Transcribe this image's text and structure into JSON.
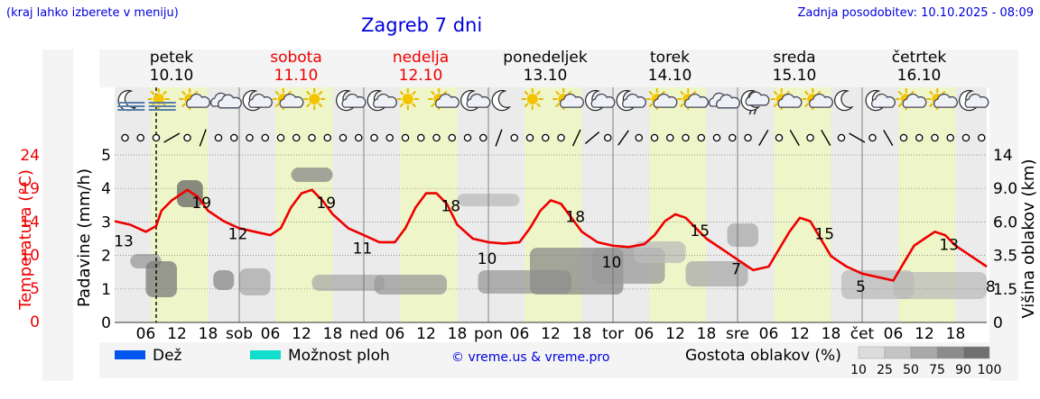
{
  "header": {
    "menu_hint": "(kraj lahko izberete v meniju)",
    "title": "Zagreb 7 dni",
    "last_update": "Zadnja posodobitev: 10.10.2025 - 08:09"
  },
  "days": [
    {
      "name": "petek",
      "date": "10.10",
      "weekend": false
    },
    {
      "name": "sobota",
      "date": "11.10",
      "weekend": true
    },
    {
      "name": "nedelja",
      "date": "12.10",
      "weekend": true
    },
    {
      "name": "ponedeljek",
      "date": "13.10",
      "weekend": false
    },
    {
      "name": "torek",
      "date": "14.10",
      "weekend": false
    },
    {
      "name": "sreda",
      "date": "15.10",
      "weekend": false
    },
    {
      "name": "četrtek",
      "date": "16.10",
      "weekend": false
    }
  ],
  "x_axis": {
    "tick_labels": [
      "06",
      "12",
      "18",
      "sob",
      "06",
      "12",
      "18",
      "ned",
      "06",
      "12",
      "18",
      "pon",
      "06",
      "12",
      "18",
      "tor",
      "06",
      "12",
      "18",
      "sre",
      "06",
      "12",
      "18",
      "čet",
      "06",
      "12",
      "18"
    ]
  },
  "y_axes": {
    "temperature_label": "Temperatura (°C)",
    "temperature_ticks": [
      "24",
      "19",
      "14",
      "10",
      "5",
      "0"
    ],
    "precip_label": "Padavine (mm/h)",
    "precip_ticks": [
      "5",
      "4",
      "3",
      "2",
      "1",
      "0"
    ],
    "cloud_label": "Višina oblakov (km)",
    "cloud_ticks": [
      "14",
      "9.0",
      "6.0",
      "3.5",
      "1.5",
      "0"
    ]
  },
  "legend": {
    "rain": "Dež",
    "showers": "Možnost ploh",
    "copyright": "© vreme.us & vreme.pro",
    "cloud_density": "Gostota oblakov (%)",
    "density_ticks": [
      "10",
      "25",
      "50",
      "75",
      "90",
      "100"
    ]
  },
  "colors": {
    "temperature_line": "#ee0000",
    "title": "#0000dd",
    "weekend": "#ee0000",
    "rain": "#0055ee",
    "showers": "#11ddcc",
    "daylight": "#eef5c8",
    "night": "#ebebeb"
  },
  "weather_icons": [
    "moon-fog-icon",
    "sun-fog-icon",
    "sun-cloud-icon",
    "cloud-icon",
    "moon-cloud-icon",
    "sun-cloud-icon",
    "sun-icon",
    "moon-cloud-icon",
    "moon-cloud-icon",
    "sun-icon",
    "sun-cloud-icon",
    "moon-cloud-icon",
    "moon-icon",
    "sun-icon",
    "sun-cloud-icon",
    "moon-cloud-icon",
    "moon-cloud-icon",
    "sun-cloud-icon",
    "sun-cloud-icon",
    "cloud-icon",
    "moon-rain-icon",
    "sun-cloud-icon",
    "sun-cloud-icon",
    "moon-icon",
    "moon-cloud-icon",
    "sun-cloud-icon",
    "sun-cloud-icon",
    "moon-cloud-icon"
  ],
  "chart_data": {
    "type": "line",
    "title": "Zagreb 7 dni",
    "xlabel": "",
    "ylabel": "Temperatura (°C)",
    "ylim": [
      0,
      24
    ],
    "time_range": [
      "10.10 00:00",
      "17.10 00:00"
    ],
    "series": [
      {
        "name": "Temperatura (°C)",
        "x_hours": [
          0,
          3,
          6,
          8,
          9,
          11,
          14,
          16,
          18,
          21,
          24,
          27,
          30,
          32,
          34,
          36,
          38,
          40,
          42,
          45,
          48,
          51,
          54,
          56,
          58,
          60,
          62,
          64,
          66,
          69,
          72,
          75,
          78,
          80,
          82,
          84,
          86,
          88,
          90,
          93,
          96,
          99,
          102,
          104,
          106,
          108,
          110,
          112,
          114,
          117,
          120,
          123,
          126,
          128,
          130,
          132,
          134,
          136,
          138,
          141,
          144,
          147,
          150,
          152,
          154,
          156,
          158,
          160,
          162,
          165,
          168
        ],
        "values": [
          14.5,
          14,
          13,
          13.8,
          16,
          17.5,
          19,
          18,
          16,
          14.5,
          13.5,
          13,
          12.5,
          13.5,
          16.5,
          18.5,
          19,
          17.5,
          15.5,
          13.5,
          12.5,
          11.5,
          11.5,
          13.5,
          16.5,
          18.5,
          18.5,
          17,
          14,
          12,
          11.5,
          11.3,
          11.5,
          13.5,
          16,
          17.5,
          17,
          15,
          13,
          11.5,
          11,
          10.8,
          11.2,
          12.5,
          14.5,
          15.5,
          15,
          13.5,
          12,
          10.5,
          9,
          7.5,
          8,
          10.5,
          13,
          15,
          14.5,
          12,
          9.5,
          8,
          7,
          6.5,
          6,
          8.5,
          11,
          12,
          13,
          12.5,
          11,
          9.5,
          8
        ]
      }
    ],
    "temperature_labels": [
      {
        "hour": 0,
        "text": "13"
      },
      {
        "hour": 15,
        "text": "19"
      },
      {
        "hour": 22,
        "text": "12"
      },
      {
        "hour": 39,
        "text": "19"
      },
      {
        "hour": 46,
        "text": "11"
      },
      {
        "hour": 63,
        "text": "18"
      },
      {
        "hour": 70,
        "text": "10"
      },
      {
        "hour": 87,
        "text": "18"
      },
      {
        "hour": 94,
        "text": "10"
      },
      {
        "hour": 111,
        "text": "15"
      },
      {
        "hour": 118,
        "text": "7"
      },
      {
        "hour": 135,
        "text": "15"
      },
      {
        "hour": 142,
        "text": "5"
      },
      {
        "hour": 159,
        "text": "13"
      },
      {
        "hour": 167,
        "text": "8"
      }
    ],
    "precipitation_ylim": [
      0,
      5
    ],
    "cloud_height_ticks_km": [
      0,
      1.5,
      3.5,
      6.0,
      9.0,
      14
    ],
    "current_time_hour": 8,
    "grid": true
  }
}
